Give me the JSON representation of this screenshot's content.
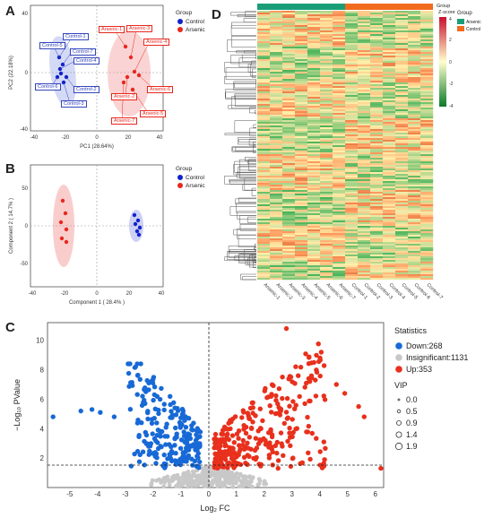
{
  "panels": {
    "a": "A",
    "b": "B",
    "c": "C",
    "d": "D"
  },
  "pca": {
    "group_title": "Group",
    "legend": [
      {
        "label": "Control",
        "color": "#1122cc"
      },
      {
        "label": "Arsenic",
        "color": "#e8281e"
      }
    ],
    "xlabel": "PC1 (28.64%)",
    "ylabel": "PC2 (22.18%)",
    "xticks": [
      "-40",
      "-20",
      "0",
      "20",
      "40"
    ],
    "yticks": [
      "-40",
      "0",
      "40"
    ],
    "control_labels": [
      "Control-1",
      "Control-5",
      "Control-7",
      "Control-4",
      "Control-6",
      "Control-2",
      "Control-3"
    ],
    "arsenic_labels": [
      "Arsenic-1",
      "Arsenic-3",
      "Arsenic-4",
      "Arsenic-6",
      "Arsenic-5",
      "Arsenic-2",
      "Arsenic-7"
    ]
  },
  "plsda": {
    "group_title": "Group",
    "legend": [
      {
        "label": "Control",
        "color": "#1122cc"
      },
      {
        "label": "Arsenic",
        "color": "#e8281e"
      }
    ],
    "xlabel": "Component 1 ( 28.4% )",
    "ylabel": "Component 2 ( 14.7% )",
    "xticks": [
      "-40",
      "-20",
      "0",
      "20",
      "40"
    ],
    "yticks": [
      "-50",
      "0",
      "50"
    ]
  },
  "heatmap": {
    "group_title": "Group",
    "zscore_title": "Z-score",
    "scale_ticks": [
      "4",
      "2",
      "0",
      "-2",
      "-4"
    ],
    "group_legend_title": "Group",
    "group_legend": [
      {
        "label": "Arsenic",
        "color": "#1a9e77"
      },
      {
        "label": "Control",
        "color": "#f26b1d"
      }
    ],
    "columns": [
      "Arsenic-1",
      "Arsenic-2",
      "Arsenic-3",
      "Arsenic-4",
      "Arsenic-5",
      "Arsenic-6",
      "Arsenic-7",
      "Control-1",
      "Control-2",
      "Control-3",
      "Control-4",
      "Control-5",
      "Control-6",
      "Control-7"
    ]
  },
  "volcano": {
    "xlabel": "Log₂ FC",
    "ylabel": "−Log₁₀ PValue",
    "xticks": [
      "-5",
      "-4",
      "-3",
      "-2",
      "-1",
      "0",
      "1",
      "2",
      "3",
      "4",
      "5",
      "6"
    ],
    "yticks": [
      "2",
      "4",
      "6",
      "8",
      "10"
    ],
    "statistics_title": "Statistics",
    "statistics": [
      {
        "label": "Down:268",
        "color": "#1769d6"
      },
      {
        "label": "Insignificant:1131",
        "color": "#c8c8c8"
      },
      {
        "label": "Up:353",
        "color": "#e8301c"
      }
    ],
    "vip_title": "VIP",
    "vip": [
      "0.0",
      "0.5",
      "0.9",
      "1.4",
      "1.9"
    ]
  }
}
